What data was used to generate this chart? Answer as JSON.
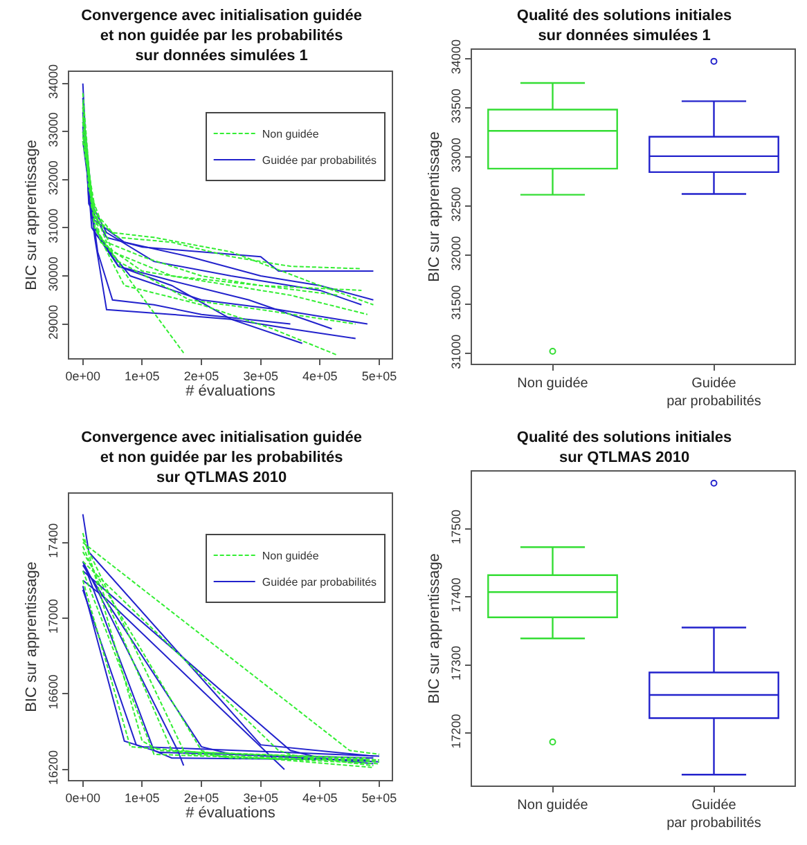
{
  "chart_data": [
    {
      "type": "line",
      "title": "Convergence avec initialisation guidée\net non guidée par les probabilités\nsur données simulées 1",
      "xlabel": "# évaluations",
      "ylabel": "BIC sur apprentissage",
      "legend": "top right",
      "xlim": [
        -23000,
        521000
      ],
      "ylim": [
        28290,
        34240
      ],
      "xticks": [
        {
          "value": 0,
          "label": "0e+00"
        },
        {
          "value": 100000,
          "label": "1e+05"
        },
        {
          "value": 200000,
          "label": "2e+05"
        },
        {
          "value": 300000,
          "label": "3e+05"
        },
        {
          "value": 400000,
          "label": "4e+05"
        },
        {
          "value": 500000,
          "label": "5e+05"
        }
      ],
      "yticks": [
        29000,
        30000,
        31000,
        32000,
        33000,
        34000
      ],
      "series": [
        {
          "name": "Non guidée",
          "color": "#33ee33",
          "line_style": "dashed",
          "x": [
            0,
            15000,
            40000,
            100000,
            200000,
            300000,
            430000
          ],
          "values": [
            33800,
            31500,
            30700,
            30400,
            30000,
            29800,
            29600
          ]
        },
        {
          "color": "#33ee33",
          "line_style": "dashed",
          "x": [
            0,
            20000,
            60000,
            150000,
            250000,
            350000,
            470000
          ],
          "values": [
            33200,
            31200,
            30800,
            30700,
            30400,
            30200,
            30150
          ]
        },
        {
          "color": "#33ee33",
          "line_style": "dashed",
          "x": [
            0,
            25000,
            80000,
            170000
          ],
          "values": [
            32800,
            30900,
            29900,
            28400
          ]
        },
        {
          "color": "#33ee33",
          "line_style": "dashed",
          "x": [
            0,
            20000,
            70000,
            200000,
            320000,
            430000
          ],
          "values": [
            33500,
            31000,
            29800,
            29400,
            28900,
            28350
          ]
        },
        {
          "color": "#33ee33",
          "line_style": "dashed",
          "x": [
            0,
            15000,
            50000,
            120000,
            250000,
            400000,
            490000
          ],
          "values": [
            33300,
            31400,
            30900,
            30800,
            30500,
            29800,
            29400
          ]
        },
        {
          "color": "#33ee33",
          "line_style": "dashed",
          "x": [
            0,
            30000,
            100000,
            200000,
            350000,
            480000
          ],
          "values": [
            32900,
            30700,
            30100,
            29900,
            29600,
            29200
          ]
        },
        {
          "color": "#33ee33",
          "line_style": "dashed",
          "x": [
            0,
            20000,
            60000,
            180000,
            300000,
            460000
          ],
          "values": [
            33000,
            31000,
            30300,
            29500,
            29300,
            29000
          ]
        },
        {
          "color": "#33ee33",
          "line_style": "dashed",
          "x": [
            0,
            10000,
            50000,
            150000,
            300000,
            470000
          ],
          "values": [
            33600,
            31800,
            30500,
            30000,
            29800,
            29700
          ]
        },
        {
          "name": "Guidée par probabilités",
          "color": "#2222cc",
          "line_style": "solid",
          "x": [
            0,
            10000,
            40000,
            100000,
            200000,
            300000,
            330000,
            490000
          ],
          "values": [
            34000,
            31500,
            30800,
            30600,
            30500,
            30400,
            30100,
            30100
          ]
        },
        {
          "color": "#2222cc",
          "line_style": "solid",
          "x": [
            0,
            20000,
            40000,
            150000,
            250000,
            350000,
            460000
          ],
          "values": [
            33000,
            30800,
            29300,
            29200,
            29100,
            28900,
            28700
          ]
        },
        {
          "color": "#2222cc",
          "line_style": "solid",
          "x": [
            0,
            20000,
            60000,
            150000,
            250000,
            370000
          ],
          "values": [
            33500,
            31000,
            30200,
            29800,
            29100,
            28600
          ]
        },
        {
          "color": "#2222cc",
          "line_style": "solid",
          "x": [
            0,
            15000,
            70000,
            180000,
            300000,
            400000,
            490000
          ],
          "values": [
            33200,
            31200,
            30700,
            30400,
            30000,
            29800,
            29500
          ]
        },
        {
          "color": "#2222cc",
          "line_style": "solid",
          "x": [
            0,
            25000,
            50000,
            120000,
            200000,
            350000
          ],
          "values": [
            32800,
            30500,
            29500,
            29400,
            29200,
            29000
          ]
        },
        {
          "color": "#2222cc",
          "line_style": "solid",
          "x": [
            0,
            15000,
            60000,
            150000,
            280000,
            420000
          ],
          "values": [
            33400,
            31000,
            30200,
            29900,
            29500,
            28900
          ]
        },
        {
          "color": "#2222cc",
          "line_style": "solid",
          "x": [
            0,
            20000,
            80000,
            200000,
            330000,
            480000
          ],
          "values": [
            33100,
            30900,
            30000,
            29500,
            29300,
            29000
          ]
        },
        {
          "color": "#2222cc",
          "line_style": "solid",
          "x": [
            0,
            10000,
            40000,
            120000,
            250000,
            400000,
            470000
          ],
          "values": [
            33700,
            31600,
            30900,
            30300,
            30000,
            29700,
            29400
          ]
        }
      ]
    },
    {
      "type": "box",
      "title": "Qualité des solutions initiales\nsur données simulées 1",
      "ylabel": "BIC sur apprentissage",
      "categories": [
        "Non guidée",
        "Guidée par probabilités"
      ],
      "colors": [
        "#33dd33",
        "#2222cc"
      ],
      "ylim": [
        30897,
        34090
      ],
      "yticks": [
        31000,
        31500,
        32000,
        32500,
        33000,
        33500,
        34000
      ],
      "boxes": [
        {
          "low": 32616,
          "q1": 32881,
          "median": 33265,
          "q3": 33482,
          "high": 33752,
          "outliers": [
            31023
          ]
        },
        {
          "low": 32624,
          "q1": 32846,
          "median": 33008,
          "q3": 33206,
          "high": 33567,
          "outliers": [
            33973
          ]
        }
      ]
    },
    {
      "type": "line",
      "title": "Convergence avec initialisation guidée\net non guidée par les probabilités\nsur QTLMAS 2010",
      "xlabel": "# évaluations",
      "ylabel": "BIC sur apprentissage",
      "legend": "top right",
      "xlim": [
        -23000,
        521000
      ],
      "ylim": [
        16144,
        17658
      ],
      "xticks": [
        {
          "value": 0,
          "label": "0e+00"
        },
        {
          "value": 100000,
          "label": "1e+05"
        },
        {
          "value": 200000,
          "label": "2e+05"
        },
        {
          "value": 300000,
          "label": "3e+05"
        },
        {
          "value": 400000,
          "label": "4e+05"
        },
        {
          "value": 500000,
          "label": "5e+05"
        }
      ],
      "yticks": [
        16200,
        16600,
        17000,
        17400
      ],
      "series": [
        {
          "name": "Non guidée",
          "color": "#33ee33",
          "line_style": "dashed",
          "x": [
            0,
            100000,
            130000,
            500000
          ],
          "values": [
            17450,
            16350,
            16300,
            16250
          ]
        },
        {
          "color": "#33ee33",
          "line_style": "dashed",
          "x": [
            0,
            150000,
            180000,
            500000
          ],
          "values": [
            17380,
            16300,
            16280,
            16240
          ]
        },
        {
          "color": "#33ee33",
          "line_style": "dashed",
          "x": [
            0,
            200000,
            230000,
            500000
          ],
          "values": [
            17350,
            16300,
            16270,
            16230
          ]
        },
        {
          "color": "#33ee33",
          "line_style": "dashed",
          "x": [
            0,
            450000,
            500000
          ],
          "values": [
            17400,
            16300,
            16280
          ]
        },
        {
          "color": "#33ee33",
          "line_style": "dashed",
          "x": [
            0,
            330000,
            360000,
            490000
          ],
          "values": [
            17300,
            16300,
            16270,
            16220
          ]
        },
        {
          "color": "#33ee33",
          "line_style": "dashed",
          "x": [
            0,
            120000,
            300000,
            490000
          ],
          "values": [
            17250,
            16280,
            16260,
            16210
          ]
        },
        {
          "color": "#33ee33",
          "line_style": "dashed",
          "x": [
            0,
            80000,
            200000,
            480000
          ],
          "values": [
            17200,
            16320,
            16290,
            16260
          ]
        },
        {
          "color": "#33ee33",
          "line_style": "dashed",
          "x": [
            0,
            170000,
            250000,
            500000
          ],
          "values": [
            17420,
            16300,
            16260,
            16250
          ]
        },
        {
          "name": "Guidée par probabilités",
          "color": "#2222cc",
          "line_style": "solid",
          "x": [
            0,
            10000,
            300000,
            490000
          ],
          "values": [
            17550,
            17350,
            16330,
            16270
          ]
        },
        {
          "color": "#2222cc",
          "line_style": "solid",
          "x": [
            0,
            70000,
            100000,
            500000
          ],
          "values": [
            17170,
            16350,
            16320,
            16270
          ]
        },
        {
          "color": "#2222cc",
          "line_style": "solid",
          "x": [
            0,
            160000,
            170000
          ],
          "values": [
            17300,
            16300,
            16220
          ]
        },
        {
          "color": "#2222cc",
          "line_style": "solid",
          "x": [
            0,
            40000,
            340000
          ],
          "values": [
            17200,
            17100,
            16200
          ]
        },
        {
          "color": "#2222cc",
          "line_style": "solid",
          "x": [
            0,
            200000,
            250000,
            500000
          ],
          "values": [
            17280,
            16320,
            16280,
            16240
          ]
        },
        {
          "color": "#2222cc",
          "line_style": "solid",
          "x": [
            0,
            350000,
            400000,
            490000
          ],
          "values": [
            17250,
            16300,
            16260,
            16230
          ]
        },
        {
          "color": "#2222cc",
          "line_style": "solid",
          "x": [
            0,
            120000,
            150000,
            480000
          ],
          "values": [
            17300,
            16300,
            16260,
            16250
          ]
        },
        {
          "color": "#2222cc",
          "line_style": "solid",
          "x": [
            0,
            90000,
            130000,
            490000
          ],
          "values": [
            17150,
            16330,
            16290,
            16260
          ]
        }
      ]
    },
    {
      "type": "box",
      "title": "Qualité des solutions initiales\nsur QTLMAS 2010",
      "ylabel": "BIC sur apprentissage",
      "categories": [
        "Non guidée",
        "Guidée par probabilités"
      ],
      "colors": [
        "#33dd33",
        "#2222cc"
      ],
      "ylim": [
        17123,
        17584
      ],
      "yticks": [
        17200,
        17300,
        17400,
        17500
      ],
      "boxes": [
        {
          "low": 17339,
          "q1": 17370,
          "median": 17407,
          "q3": 17432,
          "high": 17473,
          "outliers": [
            17187
          ]
        },
        {
          "low": 17139,
          "q1": 17222,
          "median": 17256,
          "q3": 17289,
          "high": 17355,
          "outliers": [
            17567
          ]
        }
      ]
    }
  ]
}
